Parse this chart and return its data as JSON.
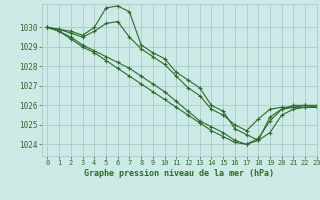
{
  "title": "Graphe pression niveau de la mer (hPa)",
  "background_color": "#ceeae6",
  "grid_color": "#a8cdc9",
  "line_color": "#2d6a2d",
  "xlim": [
    -0.5,
    23
  ],
  "ylim": [
    1023.4,
    1031.2
  ],
  "yticks": [
    1024,
    1025,
    1026,
    1027,
    1028,
    1029,
    1030
  ],
  "xticks": [
    0,
    1,
    2,
    3,
    4,
    5,
    6,
    7,
    8,
    9,
    10,
    11,
    12,
    13,
    14,
    15,
    16,
    17,
    18,
    19,
    20,
    21,
    22,
    23
  ],
  "series": [
    [
      1030.0,
      1029.9,
      1029.8,
      1029.6,
      1030.0,
      1031.0,
      1031.1,
      1030.8,
      1029.1,
      1028.7,
      1028.4,
      1027.7,
      1027.3,
      1026.9,
      1026.0,
      1025.7,
      1024.8,
      1024.5,
      1024.2,
      1024.6,
      1025.5,
      1025.8,
      1025.9,
      1025.9
    ],
    [
      1030.0,
      1029.9,
      1029.7,
      1029.5,
      1029.8,
      1030.2,
      1030.3,
      1029.5,
      1028.9,
      1028.5,
      1028.1,
      1027.5,
      1026.9,
      1026.5,
      1025.8,
      1025.5,
      1025.0,
      1024.7,
      1025.3,
      1025.8,
      1025.9,
      1025.9,
      1026.0,
      1025.9
    ],
    [
      1030.0,
      1029.8,
      1029.5,
      1029.1,
      1028.8,
      1028.5,
      1028.2,
      1027.9,
      1027.5,
      1027.1,
      1026.7,
      1026.2,
      1025.7,
      1025.2,
      1024.9,
      1024.6,
      1024.2,
      1024.0,
      1024.3,
      1025.2,
      1025.8,
      1025.9,
      1025.9,
      1025.9
    ],
    [
      1030.0,
      1029.8,
      1029.4,
      1029.0,
      1028.7,
      1028.3,
      1027.9,
      1027.5,
      1027.1,
      1026.7,
      1026.3,
      1025.9,
      1025.5,
      1025.1,
      1024.7,
      1024.4,
      1024.1,
      1024.0,
      1024.2,
      1025.4,
      1025.8,
      1026.0,
      1026.0,
      1026.0
    ]
  ]
}
